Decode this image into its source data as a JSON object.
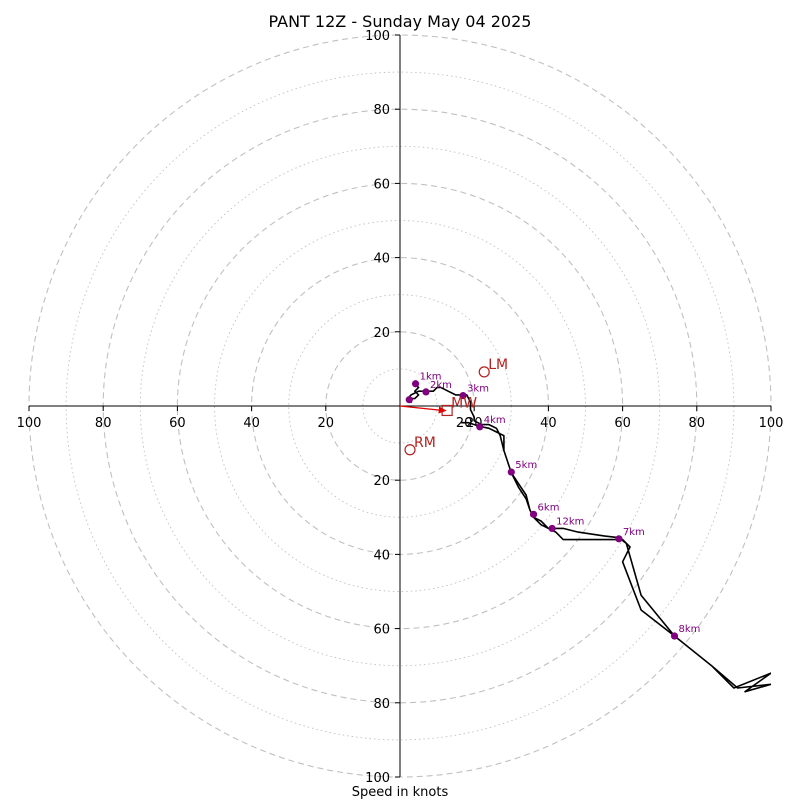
{
  "chart_data": {
    "type": "scatter",
    "title": "PANT 12Z - Sunday May 04 2025",
    "xlabel": "Speed in knots",
    "xlim": [
      -100,
      100
    ],
    "ylim": [
      -100,
      100
    ],
    "ring_labels": [
      "20",
      "40",
      "60",
      "80",
      "100"
    ],
    "x_tick_labels": [
      "100",
      "80",
      "60",
      "40",
      "20",
      "20",
      "40",
      "60",
      "80",
      "100"
    ],
    "y_tick_labels": [
      "100",
      "80",
      "60",
      "40",
      "20",
      "20",
      "40",
      "60",
      "80",
      "100"
    ],
    "hodograph": [
      [
        4,
        6
      ],
      [
        5,
        5
      ],
      [
        4,
        4
      ],
      [
        5,
        3
      ],
      [
        4,
        2
      ],
      [
        3,
        2
      ],
      [
        3,
        1
      ],
      [
        2,
        2
      ],
      [
        3,
        3
      ],
      [
        5,
        4
      ],
      [
        7,
        4
      ],
      [
        9,
        4
      ],
      [
        10,
        5
      ],
      [
        11,
        5
      ],
      [
        13,
        4
      ],
      [
        15,
        3
      ],
      [
        17,
        3
      ],
      [
        18,
        3
      ],
      [
        19,
        1
      ],
      [
        19,
        -1
      ],
      [
        20,
        -3
      ],
      [
        20,
        -4
      ],
      [
        22,
        -5
      ],
      [
        24,
        -5
      ],
      [
        26,
        -6
      ],
      [
        27,
        -8
      ],
      [
        28,
        -12
      ],
      [
        29,
        -15
      ],
      [
        30,
        -18
      ],
      [
        32,
        -21
      ],
      [
        34,
        -24
      ],
      [
        35,
        -28
      ],
      [
        36,
        -30
      ],
      [
        38,
        -31
      ],
      [
        40,
        -33
      ],
      [
        42,
        -34
      ],
      [
        44,
        -36
      ],
      [
        50,
        -36
      ],
      [
        55,
        -36
      ],
      [
        60,
        -36
      ],
      [
        62,
        -38
      ],
      [
        60,
        -42
      ],
      [
        65,
        -55
      ],
      [
        74,
        -62
      ],
      [
        84,
        -70
      ],
      [
        90,
        -76
      ],
      [
        100,
        -72
      ],
      [
        93,
        -77
      ],
      [
        100,
        -75
      ],
      [
        91,
        -76
      ],
      [
        84,
        -70
      ],
      [
        74,
        -62
      ],
      [
        65,
        -51
      ],
      [
        61,
        -37
      ],
      [
        59,
        -35.5
      ],
      [
        55,
        -35
      ],
      [
        48,
        -34
      ],
      [
        44,
        -33
      ],
      [
        42,
        -33
      ],
      [
        40,
        -33
      ],
      [
        38,
        -32
      ],
      [
        36,
        -30
      ],
      [
        35,
        -28
      ],
      [
        34,
        -25
      ],
      [
        32,
        -22
      ],
      [
        30,
        -18
      ],
      [
        29,
        -15
      ],
      [
        28,
        -12
      ],
      [
        28,
        -8
      ],
      [
        26,
        -7
      ],
      [
        24,
        -6
      ],
      [
        21.5,
        -5.5
      ],
      [
        18.5,
        -4.5
      ],
      [
        16.5,
        -4.5
      ]
    ],
    "height_markers": [
      {
        "label": "1km",
        "x": 4.2,
        "y": 6
      },
      {
        "label": "",
        "x": 2.5,
        "y": 1.7
      },
      {
        "label": "2km",
        "x": 7,
        "y": 3.8
      },
      {
        "label": "3km",
        "x": 17,
        "y": 2.8
      },
      {
        "label": "4km",
        "x": 21.5,
        "y": -5.6
      },
      {
        "label": "5km",
        "x": 30,
        "y": -17.8
      },
      {
        "label": "6km",
        "x": 36,
        "y": -29.2
      },
      {
        "label": "12km",
        "x": 41,
        "y": -33
      },
      {
        "label": "7km",
        "x": 59,
        "y": -35.8
      },
      {
        "label": "8km",
        "x": 74,
        "y": -62
      }
    ],
    "storm_motion": [
      {
        "label": "LM",
        "x": 22.7,
        "y": 9.2,
        "marker": "circle"
      },
      {
        "label": "RM",
        "x": 2.7,
        "y": -11.8,
        "marker": "circle"
      },
      {
        "label": "MW",
        "x": 12.7,
        "y": -1.2,
        "marker": "square"
      }
    ],
    "storm_motion_arrow": {
      "x1": 0,
      "y1": 0,
      "x2": 12.6,
      "y2": -1.3
    },
    "colors": {
      "hodograph": "#000000",
      "markers": "#800080",
      "storm_motion": "#b22222",
      "arrow": "#e00000",
      "grid": "#c0c0c0"
    }
  }
}
